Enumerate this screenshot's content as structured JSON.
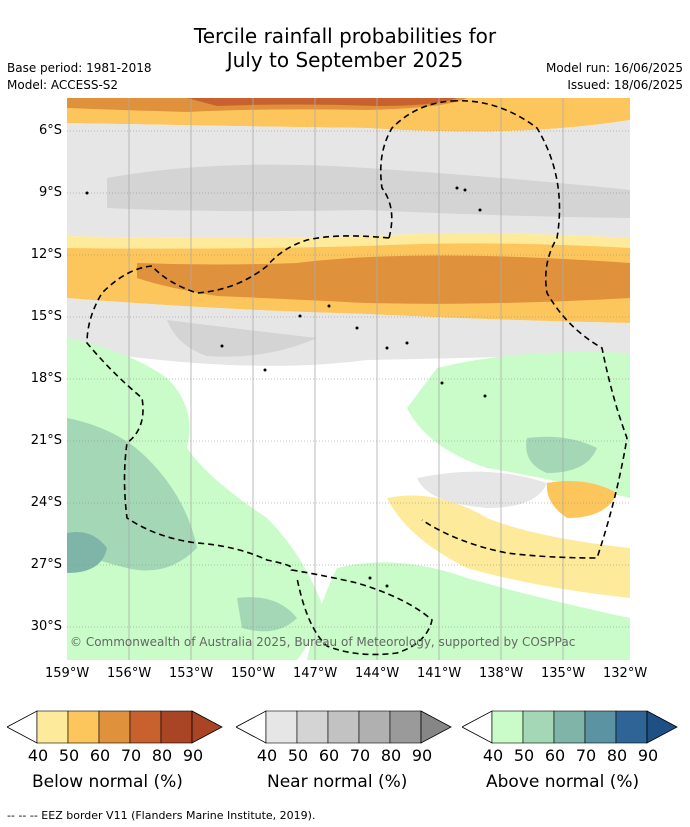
{
  "title": {
    "line1": "Tercile rainfall probabilities for",
    "line2": "July to September 2025"
  },
  "meta": {
    "base_period": "Base period: 1981-2018",
    "model": "Model: ACCESS-S2",
    "model_run": "Model run: 16/06/2025",
    "issued": "Issued: 18/06/2025"
  },
  "map": {
    "copyright": "© Commonwealth of Australia 2025, Bureau of Meteorology, supported by COSPPac",
    "lat_labels": [
      "6°S",
      "9°S",
      "12°S",
      "15°S",
      "18°S",
      "21°S",
      "24°S",
      "27°S",
      "30°S"
    ],
    "lon_labels": [
      "159°W",
      "156°W",
      "153°W",
      "150°W",
      "147°W",
      "144°W",
      "141°W",
      "138°W",
      "135°W",
      "132°W"
    ],
    "colors": {
      "below": [
        "#fdeb9b",
        "#fdc65c",
        "#e0913c",
        "#c9612e",
        "#a94424",
        "#a94424"
      ],
      "near": [
        "#e6e6e6",
        "#d4d4d4",
        "#c2c2c2",
        "#b0b0b0",
        "#9a9a9a",
        "#868686"
      ],
      "above": [
        "#c9fcc9",
        "#a4d7b5",
        "#7fb5a8",
        "#5b93a3",
        "#2e6496",
        "#1e4f85"
      ],
      "eez_border": "#000000"
    }
  },
  "legend": {
    "ticks": [
      "40",
      "50",
      "60",
      "70",
      "80",
      "90"
    ],
    "below_label": "Below normal (%)",
    "near_label": "Near normal (%)",
    "above_label": "Above normal (%)"
  },
  "footnote": "--  --  -- EEZ border V11 (Flanders Marine Institute, 2019)."
}
